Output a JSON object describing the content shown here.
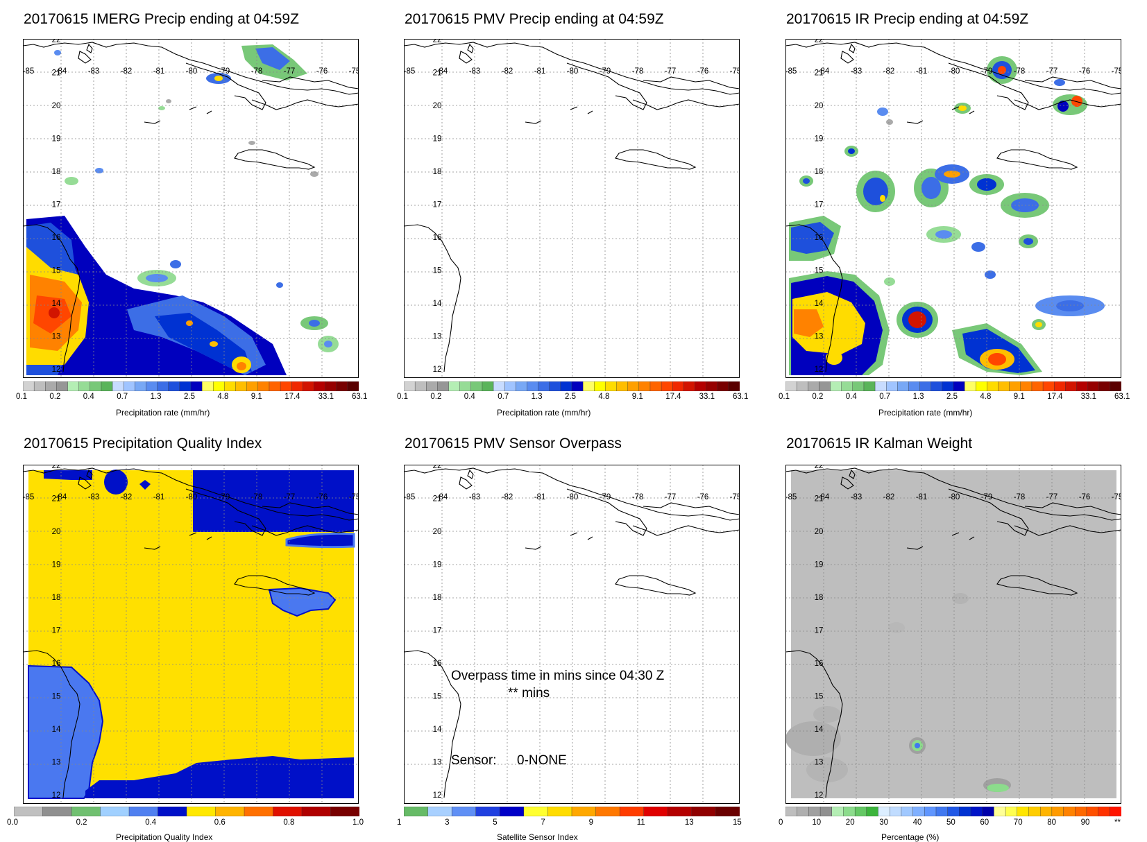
{
  "colors": {
    "gray_scale": [
      "#c8c8c8",
      "#b4b4b4",
      "#a0a0a0",
      "#8c8c8c"
    ],
    "precip_palette": [
      "#d2d2d2",
      "#bebebe",
      "#aaaaaa",
      "#969696",
      "#b4eeb4",
      "#96dc96",
      "#78c878",
      "#5ab45a",
      "#c8dcff",
      "#a0c4ff",
      "#78a8f5",
      "#5a8cf0",
      "#3c6ee6",
      "#1e50dc",
      "#0032d2",
      "#0000be",
      "#ffff64",
      "#ffff00",
      "#ffdc00",
      "#ffbe00",
      "#ffa000",
      "#ff8200",
      "#ff6400",
      "#ff4600",
      "#f02800",
      "#d21400",
      "#b40000",
      "#960000",
      "#780000",
      "#5a0000"
    ],
    "quality_palette": [
      "#c0c0c0",
      "#909090",
      "#70c070",
      "#a0d0ff",
      "#5080f0",
      "#0010c8",
      "#ffe800",
      "#ffb400",
      "#ff7000",
      "#e01000",
      "#b00000",
      "#780000"
    ],
    "sensor_palette": [
      "#66bb66",
      "#a8d0ff",
      "#5f8ff5",
      "#2040e0",
      "#0000c8",
      "#ffff30",
      "#ffdc00",
      "#ffa800",
      "#ff7800",
      "#ff3c00",
      "#e00000",
      "#b40000",
      "#900000",
      "#6a0000"
    ],
    "kalman_palette": [
      "#bebebe",
      "#afafaf",
      "#a0a0a0",
      "#919191",
      "#b4eeb4",
      "#8cdc8c",
      "#64c864",
      "#3cb43c",
      "#dceeff",
      "#c0dcff",
      "#a0c8ff",
      "#80b0ff",
      "#6096ff",
      "#4078f0",
      "#2058e6",
      "#0032d2",
      "#0014c8",
      "#0000aa",
      "#ffff96",
      "#ffff50",
      "#ffe600",
      "#ffcd00",
      "#ffb400",
      "#ff9b00",
      "#ff8200",
      "#ff6900",
      "#ff5000",
      "#ff3200",
      "#ff1400"
    ],
    "quality_yellow": "#ffe000",
    "quality_blue": "#0010c8",
    "quality_lightblue": "#4a78f0"
  },
  "axes": {
    "lon_labels": [
      "-85",
      "-84",
      "-83",
      "-82",
      "-81",
      "-80",
      "-79",
      "-78",
      "-77",
      "-76",
      "-75"
    ],
    "lat_labels": [
      "22",
      "21",
      "20",
      "19",
      "18",
      "17",
      "16",
      "15",
      "14",
      "13",
      "12"
    ]
  },
  "panels": {
    "imerg": {
      "title": "20170615 IMERG Precip ending at 04:59Z",
      "colorbar_label": "Precipitation rate (mm/hr)",
      "colorbar_ticks": [
        "0.1",
        "0.2",
        "0.4",
        "0.7",
        "1.3",
        "2.5",
        "4.8",
        "9.1",
        "17.4",
        "33.1",
        "63.1"
      ]
    },
    "pmv": {
      "title": "20170615 PMV Precip ending at 04:59Z",
      "colorbar_label": "Precipitation rate (mm/hr)",
      "colorbar_ticks": [
        "0.1",
        "0.2",
        "0.4",
        "0.7",
        "1.3",
        "2.5",
        "4.8",
        "9.1",
        "17.4",
        "33.1",
        "63.1"
      ]
    },
    "ir": {
      "title": "20170615 IR Precip ending at 04:59Z",
      "colorbar_label": "Precipitation rate (mm/hr)",
      "colorbar_ticks": [
        "0.1",
        "0.2",
        "0.4",
        "0.7",
        "1.3",
        "2.5",
        "4.8",
        "9.1",
        "17.4",
        "33.1",
        "63.1"
      ]
    },
    "quality": {
      "title": "20170615 Precipitation Quality Index",
      "colorbar_label": "Precipitation Quality Index",
      "colorbar_ticks": [
        "0.0",
        "0.2",
        "0.4",
        "0.6",
        "0.8",
        "1.0"
      ]
    },
    "sensor": {
      "title": "20170615 PMV Sensor Overpass",
      "colorbar_label": "Satellite Sensor Index",
      "colorbar_ticks": [
        "1",
        "3",
        "5",
        "7",
        "9",
        "11",
        "13",
        "15"
      ],
      "overpass_line1": "Overpass time in mins since 04:30 Z",
      "overpass_line2": "** mins",
      "sensor_label": "Sensor:",
      "sensor_value": "0-NONE"
    },
    "kalman": {
      "title": "20170615 IR Kalman Weight",
      "colorbar_label": "Percentage (%)",
      "colorbar_ticks": [
        "0",
        "10",
        "20",
        "30",
        "40",
        "50",
        "60",
        "70",
        "80",
        "90",
        "**"
      ]
    }
  }
}
